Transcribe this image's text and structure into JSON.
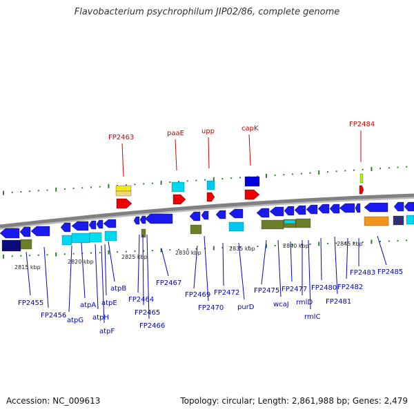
{
  "title": "Flavobacterium psychrophilum JIP02/86, complete genome",
  "footer": {
    "accession": "Accession: NC_009613",
    "stats": "Topology: circular; Length: 2,861,988 bp; Genes: 2,479"
  },
  "colors": {
    "plus_label": "#cc0000",
    "minus_label": "#0000cc",
    "blue_gene": "#1a1aee",
    "tick": "#2e7d2e"
  },
  "ruler_labels": [
    "2815 kbp",
    "2820 kbp",
    "2825 kbp",
    "2830 kbp",
    "2835 kbp",
    "2840 kbp",
    "2845 kbp"
  ],
  "plus_strand_labels": [
    "FP2463",
    "paaE",
    "upp",
    "capK",
    "FP2484"
  ],
  "minus_strand_labels": [
    "FP2455",
    "FP2456",
    "atpG",
    "atpA",
    "atpH",
    "atpF",
    "atpE",
    "atpB",
    "FP2464",
    "FP2465",
    "FP2466",
    "FP2467",
    "FP2469",
    "FP2470",
    "FP2472",
    "purD",
    "FP2475",
    "wcaJ",
    "FP2477",
    "rmlD",
    "rmlC",
    "FP2480",
    "FP2481",
    "FP2482",
    "FP2483",
    "FP2485"
  ]
}
